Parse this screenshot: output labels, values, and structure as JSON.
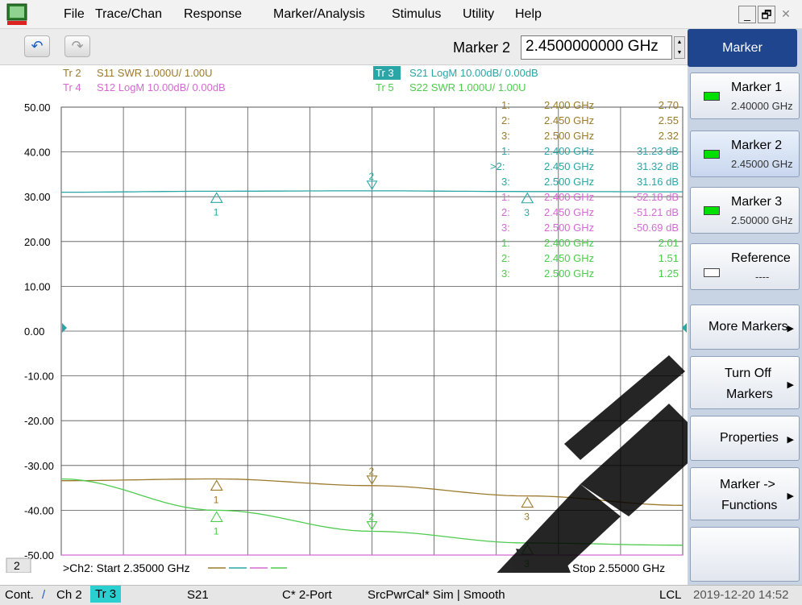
{
  "menu": {
    "items": [
      "File",
      "Trace/Chan",
      "Response",
      "Marker/Analysis",
      "Stimulus",
      "Utility",
      "Help"
    ],
    "win_min": "_",
    "win_restore": "🗗",
    "win_close": "✕"
  },
  "toolbar": {
    "undo_icon": "↶",
    "redo_icon": "↷",
    "marker_label": "Marker 2",
    "marker_value": "2.4500000000 GHz"
  },
  "traces": {
    "tr2_tag": "Tr 2",
    "tr2_desc": "S11 SWR 1.000U/ 1.00U",
    "tr4_tag": "Tr 4",
    "tr4_desc": "S12 LogM 10.00dB/ 0.00dB",
    "tr3_tag": "Tr 3",
    "tr3_desc": "S21 LogM 10.00dB/ 0.00dB",
    "tr5_tag": "Tr 5",
    "tr5_desc": "S22 SWR 1.000U/ 1.00U"
  },
  "y_ticks": [
    "50.00",
    "40.00",
    "30.00",
    "20.00",
    "10.00",
    "0.00",
    "-10.00",
    "-20.00",
    "-30.00",
    "-40.00",
    "-50.00"
  ],
  "marker_table": [
    {
      "n": "1:",
      "f": "2.400 GHz",
      "v": "2.70",
      "color": "#9b7a2c"
    },
    {
      "n": "2:",
      "f": "2.450 GHz",
      "v": "2.55",
      "color": "#9b7a2c"
    },
    {
      "n": "3:",
      "f": "2.500 GHz",
      "v": "2.32",
      "color": "#9b7a2c"
    },
    {
      "n": "1:",
      "f": "2.400 GHz",
      "v": "31.23 dB",
      "color": "#2aa6a6"
    },
    {
      "n": ">2:",
      "f": "2.450 GHz",
      "v": "31.32 dB",
      "color": "#2aa6a6"
    },
    {
      "n": "3:",
      "f": "2.500 GHz",
      "v": "31.16 dB",
      "color": "#2aa6a6"
    },
    {
      "n": "1:",
      "f": "2.400 GHz",
      "v": "-52.18 dB",
      "color": "#d36ad3"
    },
    {
      "n": "2:",
      "f": "2.450 GHz",
      "v": "-51.21 dB",
      "color": "#d36ad3"
    },
    {
      "n": "3:",
      "f": "2.500 GHz",
      "v": "-50.69 dB",
      "color": "#d36ad3"
    },
    {
      "n": "1:",
      "f": "2.400 GHz",
      "v": "2.01",
      "color": "#4ecb4e"
    },
    {
      "n": "2:",
      "f": "2.450 GHz",
      "v": "1.51",
      "color": "#4ecb4e"
    },
    {
      "n": "3:",
      "f": "2.500 GHz",
      "v": "1.25",
      "color": "#4ecb4e"
    }
  ],
  "bottom": {
    "chan_num": "2",
    "start": ">Ch2: Start  2.35000 GHz",
    "stop": "Stop  2.55000 GHz"
  },
  "status": {
    "cont": "Cont.",
    "ch": "Ch 2",
    "tr": "Tr 3",
    "param": "S21",
    "cal": "C* 2-Port",
    "src": "SrcPwrCal* Sim | Smooth",
    "lcl": "LCL",
    "datetime": "2019-12-20 14:52"
  },
  "softkeys": {
    "title": "Marker",
    "m1": "Marker 1",
    "m1_val": "2.40000 GHz",
    "m2": "Marker 2",
    "m2_val": "2.45000 GHz",
    "m3": "Marker 3",
    "m3_val": "2.50000 GHz",
    "ref": "Reference",
    "ref_val": "----",
    "more": "More Markers",
    "turnoff1": "Turn Off",
    "turnoff2": "Markers",
    "props": "Properties",
    "mfunc1": "Marker ->",
    "mfunc2": "Functions"
  },
  "chart_data": {
    "type": "line",
    "x_unit": "GHz",
    "xlim": [
      2.35,
      2.55
    ],
    "ylim": [
      -50,
      50
    ],
    "grid": true,
    "series": [
      {
        "name": "S21 LogM",
        "color": "#2aa6a6",
        "x": [
          2.35,
          2.4,
          2.45,
          2.5,
          2.55
        ],
        "y": [
          31.0,
          31.23,
          31.32,
          31.16,
          31.1
        ]
      },
      {
        "name": "S11 SWR",
        "color": "#9b7a2c",
        "x": [
          2.35,
          2.4,
          2.45,
          2.5,
          2.55
        ],
        "y": [
          -33.4,
          -33.0,
          -34.5,
          -36.8,
          -38.9
        ]
      },
      {
        "name": "S22 SWR",
        "color": "#4ecb4e",
        "x": [
          2.35,
          2.4,
          2.45,
          2.5,
          2.55
        ],
        "y": [
          -33.0,
          -40.0,
          -44.7,
          -47.3,
          -47.8
        ]
      },
      {
        "name": "S12 LogM",
        "color": "#d36ad3",
        "x": [
          2.35,
          2.4,
          2.45,
          2.5,
          2.55
        ],
        "y": [
          -52.18,
          -52.18,
          -51.21,
          -50.69,
          -51.0
        ]
      }
    ],
    "markers": [
      {
        "trace": "S21 LogM",
        "x": [
          2.4,
          2.45,
          2.5
        ],
        "y": [
          31.23,
          31.32,
          31.16
        ]
      },
      {
        "trace": "S11 SWR",
        "x": [
          2.4,
          2.45,
          2.5
        ],
        "y": [
          -33.0,
          -34.5,
          -36.8
        ]
      },
      {
        "trace": "S22 SWR",
        "x": [
          2.4,
          2.45,
          2.5
        ],
        "y": [
          -40.0,
          -44.7,
          -47.3
        ]
      }
    ]
  }
}
